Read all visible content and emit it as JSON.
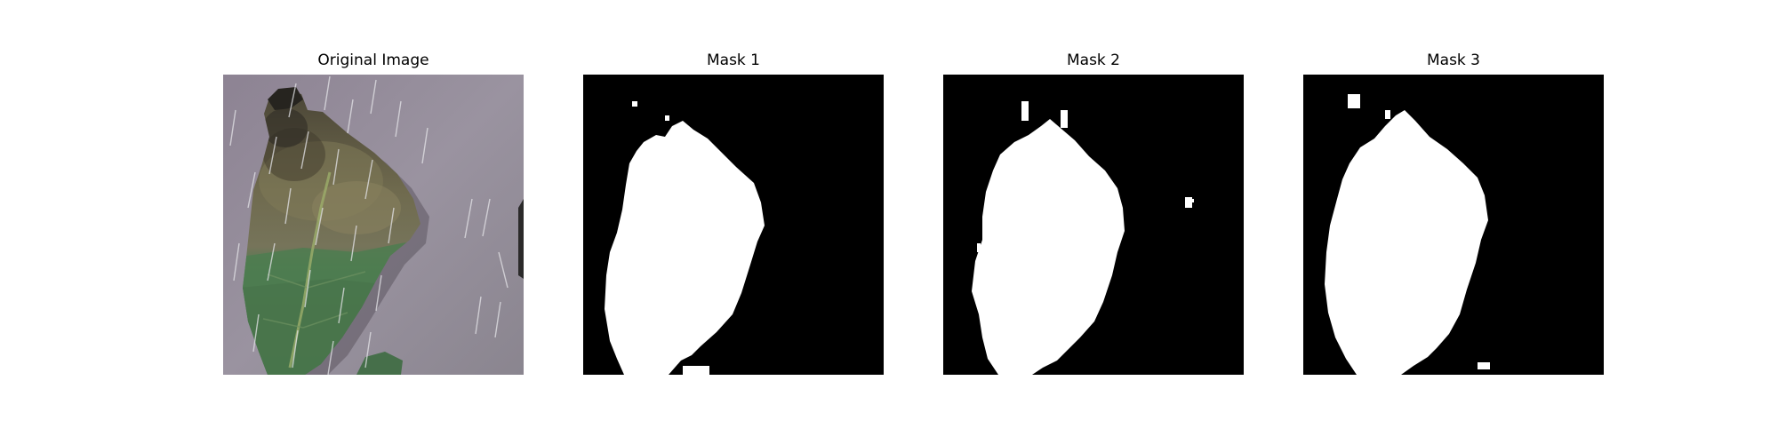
{
  "figure": {
    "background": "#ffffff",
    "panels": [
      {
        "title": "Original Image",
        "kind": "photo",
        "subject": "leaf-photo"
      },
      {
        "title": "Mask 1",
        "kind": "mask"
      },
      {
        "title": "Mask 2",
        "kind": "mask"
      },
      {
        "title": "Mask 3",
        "kind": "mask"
      }
    ],
    "colors": {
      "mask_background": "#000000",
      "mask_foreground": "#ffffff",
      "photo_background": "#8e8893",
      "leaf_blight": "#6f6a4e",
      "leaf_healthy": "#4d7a4f",
      "rain_streak": "#e4e4e8"
    }
  }
}
